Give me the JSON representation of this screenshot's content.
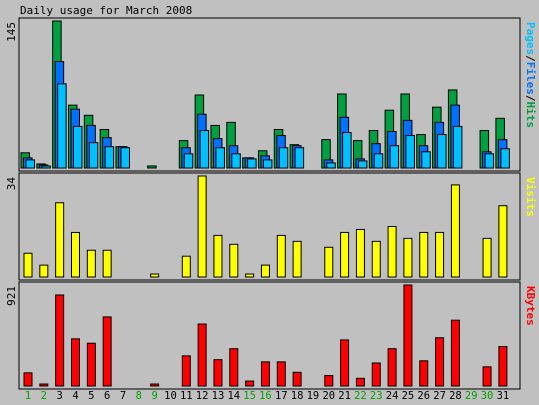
{
  "chart_data": {
    "type": "bar",
    "title": "Daily usage for March 2008",
    "categories": [
      "1",
      "2",
      "3",
      "4",
      "5",
      "6",
      "7",
      "8",
      "9",
      "10",
      "11",
      "12",
      "13",
      "14",
      "15",
      "16",
      "17",
      "18",
      "19",
      "20",
      "21",
      "22",
      "23",
      "24",
      "25",
      "26",
      "27",
      "28",
      "29",
      "30",
      "31"
    ],
    "weekend_days": [
      "1",
      "2",
      "8",
      "9",
      "15",
      "16",
      "22",
      "23",
      "29",
      "30"
    ],
    "colors": {
      "background": "#c0c0c0",
      "hits": "#00a040",
      "files": "#0070ff",
      "pages": "#00c0ff",
      "visits": "#ffff00",
      "kbytes": "#ff0000",
      "weekday_label": "#000000",
      "weekend_label": "#00a000"
    },
    "panels": [
      {
        "id": "hits-files-pages",
        "ymax": 145,
        "ymax_label": "145",
        "legend": [
          {
            "text": "Pages",
            "color": "#00c0ff"
          },
          {
            "text": "/",
            "color": "#000000"
          },
          {
            "text": "Files",
            "color": "#0070ff"
          },
          {
            "text": "/",
            "color": "#000000"
          },
          {
            "text": "Hits",
            "color": "#00a040"
          }
        ],
        "series": [
          {
            "name": "Hits",
            "values": [
              15,
              4,
              145,
              62,
              52,
              38,
              21,
              0,
              2,
              0,
              27,
              72,
              42,
              45,
              10,
              17,
              38,
              23,
              0,
              28,
              73,
              27,
              37,
              57,
              73,
              33,
              60,
              77,
              0,
              37,
              49
            ]
          },
          {
            "name": "Files",
            "values": [
              10,
              3,
              105,
              58,
              42,
              30,
              21,
              0,
              0,
              0,
              20,
              53,
              29,
              22,
              10,
              12,
              32,
              22,
              0,
              8,
              50,
              9,
              24,
              36,
              47,
              22,
              45,
              62,
              0,
              16,
              28
            ]
          },
          {
            "name": "Pages",
            "values": [
              8,
              2,
              83,
              41,
              25,
              21,
              20,
              0,
              0,
              0,
              14,
              37,
              20,
              14,
              9,
              8,
              20,
              20,
              0,
              5,
              35,
              7,
              14,
              22,
              32,
              16,
              33,
              41,
              0,
              14,
              19
            ]
          }
        ]
      },
      {
        "id": "visits",
        "ymax": 34,
        "ymax_label": "34",
        "legend": [
          {
            "text": "Visits",
            "color": "#ffff00"
          }
        ],
        "series": [
          {
            "name": "Visits",
            "values": [
              8,
              4,
              25,
              15,
              9,
              9,
              0,
              0,
              1,
              0,
              7,
              34,
              14,
              11,
              1,
              4,
              14,
              12,
              0,
              10,
              15,
              16,
              12,
              17,
              13,
              15,
              15,
              31,
              0,
              13,
              24
            ]
          }
        ]
      },
      {
        "id": "kbytes",
        "ymax": 921,
        "ymax_label": "921",
        "legend": [
          {
            "text": "KBytes",
            "color": "#ff0000"
          }
        ],
        "series": [
          {
            "name": "KBytes",
            "values": [
              120,
              15,
              830,
              430,
              390,
              630,
              0,
              0,
              10,
              0,
              275,
              565,
              240,
              340,
              45,
              220,
              220,
              125,
              0,
              95,
              420,
              70,
              210,
              340,
              921,
              230,
              440,
              600,
              0,
              175,
              360
            ]
          }
        ]
      }
    ]
  }
}
